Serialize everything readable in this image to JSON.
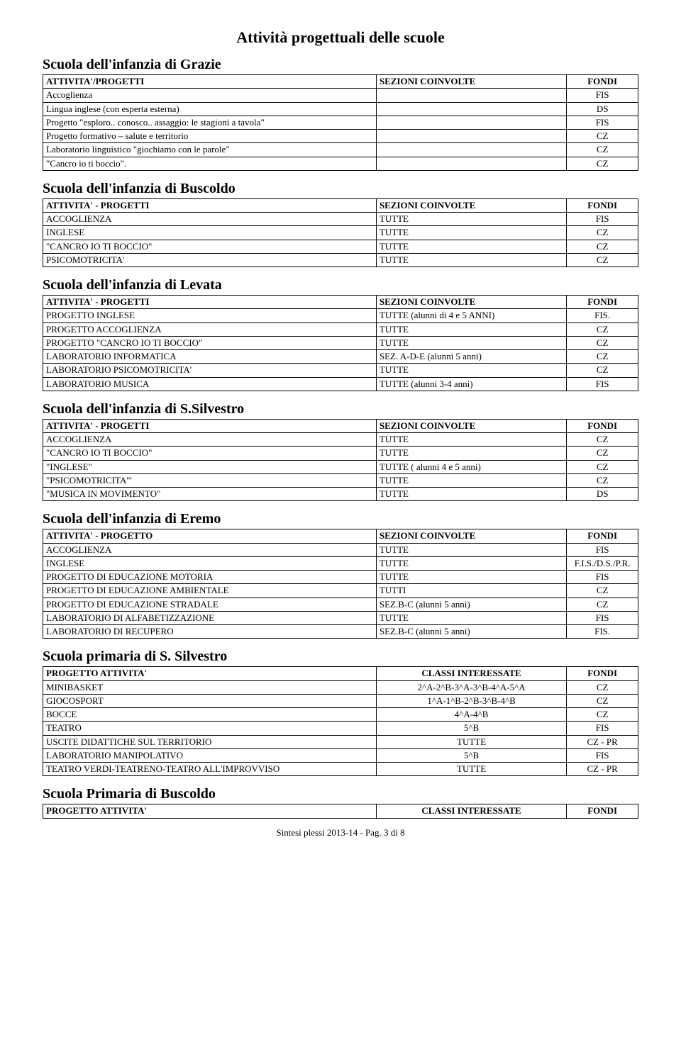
{
  "page_title": "Attività progettuali delle scuole",
  "footer": "Sintesi plessi 2013-14  -  Pag. 3 di 8",
  "sections": [
    {
      "title": "Scuola dell'infanzia di Grazie",
      "headers": [
        "ATTIVITA'/PROGETTI",
        "SEZIONI COINVOLTE",
        "FONDI"
      ],
      "rows": [
        [
          "Accoglienza",
          "",
          "FIS"
        ],
        [
          "Lingua inglese (con esperta esterna)",
          "",
          "DS"
        ],
        [
          "Progetto \"esploro.. conosco.. assaggio: le stagioni a tavola\"",
          "",
          "FIS"
        ],
        [
          "Progetto  formativo – salute e territorio",
          "",
          "CZ"
        ],
        [
          "Laboratorio linguistico \"giochiamo con le parole\"",
          "",
          "CZ"
        ],
        [
          "\"Cancro io ti boccio\".",
          "",
          "CZ"
        ]
      ]
    },
    {
      "title": "Scuola dell'infanzia di Buscoldo",
      "headers": [
        "ATTIVITA' - PROGETTI",
        "SEZIONI COINVOLTE",
        "FONDI"
      ],
      "rows": [
        [
          "ACCOGLIENZA",
          "TUTTE",
          "FIS"
        ],
        [
          "INGLESE",
          "TUTTE",
          "CZ"
        ],
        [
          "\"CANCRO IO TI BOCCIO\"",
          "TUTTE",
          "CZ"
        ],
        [
          "PSICOMOTRICITA'",
          "TUTTE",
          "CZ"
        ]
      ]
    },
    {
      "title": "Scuola dell'infanzia di Levata",
      "headers": [
        "ATTIVITA' - PROGETTI",
        "SEZIONI COINVOLTE",
        "FONDI"
      ],
      "rows": [
        [
          "PROGETTO INGLESE",
          "TUTTE (alunni di 4 e 5 ANNI)",
          "FIS."
        ],
        [
          "PROGETTO ACCOGLIENZA",
          "TUTTE",
          "CZ"
        ],
        [
          "PROGETTO \"CANCRO IO TI BOCCIO\"",
          "TUTTE",
          "CZ"
        ],
        [
          "LABORATORIO INFORMATICA",
          "SEZ. A-D-E (alunni 5 anni)",
          "CZ"
        ],
        [
          "LABORATORIO PSICOMOTRICITA'",
          "TUTTE",
          "CZ"
        ],
        [
          "LABORATORIO MUSICA",
          "TUTTE (alunni 3-4 anni)",
          "FIS"
        ]
      ]
    },
    {
      "title": "Scuola dell'infanzia di S.Silvestro",
      "headers": [
        "ATTIVITA' - PROGETTI",
        "SEZIONI COINVOLTE",
        "FONDI"
      ],
      "rows": [
        [
          "ACCOGLIENZA",
          "TUTTE",
          "CZ"
        ],
        [
          "\"CANCRO IO TI BOCCIO\"",
          "TUTTE",
          "CZ"
        ],
        [
          "\"INGLESE\"",
          "TUTTE ( alunni 4 e 5 anni)",
          "CZ"
        ],
        [
          "\"PSICOMOTRICITA'\"",
          "TUTTE",
          "CZ"
        ],
        [
          "\"MUSICA IN MOVIMENTO\"",
          "TUTTE",
          "DS"
        ]
      ]
    },
    {
      "title": "Scuola dell'infanzia di Eremo",
      "headers": [
        "ATTIVITA' - PROGETTO",
        "SEZIONI COINVOLTE",
        "FONDI"
      ],
      "rows": [
        [
          "ACCOGLIENZA",
          "TUTTE",
          "FIS"
        ],
        [
          "INGLESE",
          "TUTTE",
          "F.I.S./D.S./P.R."
        ],
        [
          "PROGETTO DI EDUCAZIONE MOTORIA",
          "TUTTE",
          "FIS"
        ],
        [
          "PROGETTO DI EDUCAZIONE AMBIENTALE",
          "TUTTI",
          "CZ"
        ],
        [
          "PROGETTO DI EDUCAZIONE STRADALE",
          "SEZ.B-C (alunni 5 anni)",
          "CZ"
        ],
        [
          "LABORATORIO DI ALFABETIZZAZIONE",
          "TUTTE",
          "FIS"
        ],
        [
          "LABORATORIO DI RECUPERO",
          "SEZ.B-C (alunni 5 anni)",
          "FIS."
        ]
      ]
    },
    {
      "title": "Scuola primaria di S. Silvestro",
      "headers": [
        "PROGETTO   ATTIVITA'",
        "CLASSI INTERESSATE",
        "FONDI"
      ],
      "center_col2": true,
      "rows": [
        [
          "MINIBASKET",
          "2^A-2^B-3^A-3^B-4^A-5^A",
          "CZ"
        ],
        [
          "GIOCOSPORT",
          "1^A-1^B-2^B-3^B-4^B",
          "CZ"
        ],
        [
          "BOCCE",
          "4^A-4^B",
          "CZ"
        ],
        [
          "TEATRO",
          "5^B",
          "FIS"
        ],
        [
          "USCITE DIDATTICHE SUL TERRITORIO",
          "TUTTE",
          "CZ - PR"
        ],
        [
          "LABORATORIO MANIPOLATIVO",
          "5^B",
          "FIS"
        ],
        [
          "TEATRO VERDI-TEATRENO-TEATRO ALL'IMPROVVISO",
          "TUTTE",
          "CZ - PR"
        ]
      ]
    },
    {
      "title": "Scuola  Primaria  di Buscoldo",
      "headers": [
        "PROGETTO  ATTIVITA'",
        "CLASSI INTERESSATE",
        "FONDI"
      ],
      "center_col2": true,
      "rows": []
    }
  ]
}
